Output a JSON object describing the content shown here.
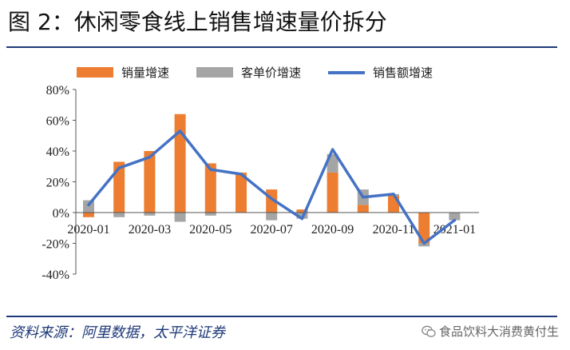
{
  "title": "图 2：休闲零食线上销售增速量价拆分",
  "source": "资料来源：阿里数据，太平洋证券",
  "watermark": "食品饮料大消费黄付生",
  "colors": {
    "accent": "#1f3a78",
    "volume": "#ed7d31",
    "price": "#a5a5a5",
    "sales": "#4472c4"
  },
  "chart_data": {
    "type": "bar",
    "categories": [
      "2020-01",
      "2020-02",
      "2020-03",
      "2020-04",
      "2020-05",
      "2020-06",
      "2020-07",
      "2020-08",
      "2020-09",
      "2020-10",
      "2020-11",
      "2020-12",
      "2021-01"
    ],
    "tick_labels": [
      "2020-01",
      "2020-03",
      "2020-05",
      "2020-07",
      "2020-09",
      "2020-11",
      "2021-01"
    ],
    "series": [
      {
        "name": "销量增速",
        "type": "bar",
        "values": [
          -3,
          33,
          40,
          64,
          32,
          26,
          15,
          2,
          26,
          5,
          11,
          -20,
          0
        ]
      },
      {
        "name": "客单价增速",
        "type": "bar",
        "values": [
          8,
          -3,
          -2,
          -6,
          -2,
          0,
          -5,
          -4,
          12,
          10,
          1,
          -2,
          -5
        ]
      },
      {
        "name": "销售额增速",
        "type": "line",
        "values": [
          5,
          29,
          36,
          53,
          28,
          25,
          9,
          -4,
          41,
          10,
          12,
          -20,
          -5
        ]
      }
    ],
    "yticks": [
      "80%",
      "60%",
      "40%",
      "20%",
      "0%",
      "-20%",
      "-40%"
    ],
    "ylim": [
      -40,
      80
    ],
    "legend": "top",
    "grid": false
  }
}
